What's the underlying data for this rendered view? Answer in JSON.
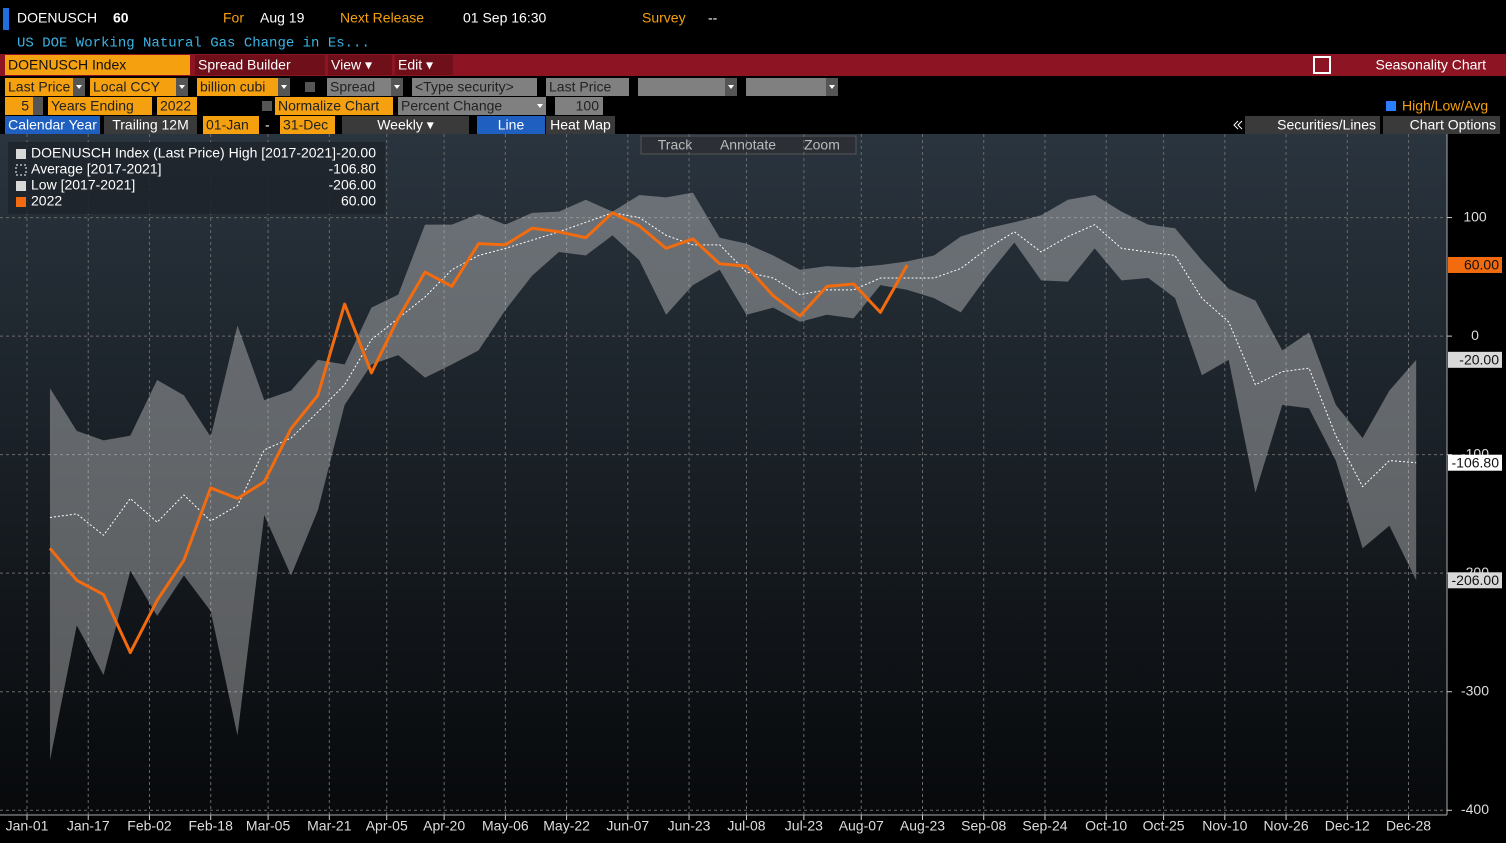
{
  "header": {
    "ticker": "DOENUSCH",
    "last": "60",
    "for_label": "For",
    "for_date": "Aug 19",
    "next_release_label": "Next Release",
    "next_release": "01 Sep 16:30",
    "survey_label": "Survey",
    "survey": "--",
    "description": "US DOE Working Natural Gas Change in Es..."
  },
  "menu": {
    "security": "DOENUSCH Index",
    "items": [
      "Spread Builder",
      "View ▾",
      "Edit ▾"
    ],
    "function": "Seasonality Chart"
  },
  "settings": {
    "fields": [
      "Last Price",
      "Local CCY",
      "billion cubi",
      "Spread",
      "<Type security>",
      "Last Price"
    ],
    "years": "5",
    "years_label": "Years Ending",
    "end_year": "2022",
    "normalize": "Normalize Chart",
    "normalize_mode": "Percent Change",
    "base": "100",
    "high_low_avg": "High/Low/Avg"
  },
  "view": {
    "period_tabs": [
      "Calendar Year",
      "Trailing 12M"
    ],
    "start": "01-Jan",
    "separator": "-",
    "end": "31-Dec",
    "frequency": "Weekly ▾",
    "styles": [
      "Line",
      "Heat Map"
    ],
    "panels": [
      "Securities/Lines",
      "Chart Options"
    ]
  },
  "tools": [
    "Track",
    "Annotate",
    "Zoom"
  ],
  "chart_data": {
    "type": "line",
    "xlim": [
      1,
      365
    ],
    "xticks": [
      {
        "value": 1,
        "label": "Jan-01"
      },
      {
        "value": 17,
        "label": "Jan-17"
      },
      {
        "value": 33,
        "label": "Feb-02"
      },
      {
        "value": 49,
        "label": "Feb-18"
      },
      {
        "value": 64,
        "label": "Mar-05"
      },
      {
        "value": 80,
        "label": "Mar-21"
      },
      {
        "value": 95,
        "label": "Apr-05"
      },
      {
        "value": 110,
        "label": "Apr-20"
      },
      {
        "value": 126,
        "label": "May-06"
      },
      {
        "value": 142,
        "label": "May-22"
      },
      {
        "value": 158,
        "label": "Jun-07"
      },
      {
        "value": 174,
        "label": "Jun-23"
      },
      {
        "value": 189,
        "label": "Jul-08"
      },
      {
        "value": 204,
        "label": "Jul-23"
      },
      {
        "value": 219,
        "label": "Aug-07"
      },
      {
        "value": 235,
        "label": "Aug-23"
      },
      {
        "value": 251,
        "label": "Sep-08"
      },
      {
        "value": 267,
        "label": "Sep-24"
      },
      {
        "value": 283,
        "label": "Oct-10"
      },
      {
        "value": 298,
        "label": "Oct-25"
      },
      {
        "value": 314,
        "label": "Nov-10"
      },
      {
        "value": 330,
        "label": "Nov-26"
      },
      {
        "value": 346,
        "label": "Dec-12"
      },
      {
        "value": 362,
        "label": "Dec-28"
      }
    ],
    "ylim": [
      -404,
      170.5
    ],
    "yticks": [
      100,
      0,
      -100,
      -200,
      -300,
      -400
    ],
    "grid": true,
    "x": [
      7,
      14,
      21,
      28,
      35,
      42,
      49,
      56,
      63,
      70,
      77,
      84,
      91,
      98,
      105,
      112,
      119,
      126,
      133,
      140,
      147,
      154,
      161,
      168,
      175,
      182,
      189,
      196,
      203,
      210,
      217,
      224,
      231,
      238,
      245,
      252,
      259,
      266,
      273,
      280,
      287,
      294,
      301,
      308,
      315,
      322,
      329,
      336,
      343,
      350,
      357,
      364
    ],
    "series": [
      {
        "name": "DOENUSCH Index (Last Price) High [2017-2021]",
        "style": "band-high",
        "color": "#d9d9d9",
        "legend_value": "-20.00",
        "values": [
          -44,
          -80,
          -88,
          -84,
          -37,
          -50,
          -85,
          9,
          -54,
          -46,
          -20,
          -24,
          24,
          35,
          94,
          94,
          103,
          94,
          104,
          105,
          115,
          105,
          119,
          117,
          121,
          83,
          78,
          68,
          56,
          59,
          58,
          60,
          63,
          68,
          84,
          91,
          96,
          102,
          115,
          119,
          105,
          94,
          91,
          64,
          40,
          30,
          -12,
          3,
          -58,
          -86,
          -46,
          -20
        ]
      },
      {
        "name": "Average  [2017-2021]",
        "style": "dotted",
        "color": "#ffffff",
        "legend_value": "-106.80",
        "values": [
          -153,
          -150,
          -168,
          -137,
          -157,
          -134,
          -156,
          -143,
          -96,
          -86,
          -64,
          -41,
          -3,
          15,
          33,
          56,
          68,
          74,
          81,
          88,
          96,
          104,
          100,
          85,
          77,
          77,
          54,
          49,
          35,
          39,
          39,
          49,
          49,
          49,
          57,
          74,
          88,
          71,
          84,
          94,
          74,
          71,
          68,
          32,
          12,
          -41,
          -30,
          -27,
          -84,
          -127,
          -105,
          -106.8
        ]
      },
      {
        "name": "Low  [2017-2021]",
        "style": "band-low",
        "color": "#d9d9d9",
        "legend_value": "-206.00",
        "values": [
          -358,
          -244,
          -286,
          -198,
          -236,
          -202,
          -232,
          -337,
          -151,
          -202,
          -147,
          -58,
          -24,
          -16,
          -35,
          -24,
          -12,
          22,
          51,
          71,
          68,
          85,
          64,
          18,
          43,
          56,
          18,
          24,
          12,
          18,
          15,
          43,
          39,
          32,
          20,
          51,
          79,
          47,
          46,
          74,
          47,
          49,
          32,
          -33,
          -20,
          -132,
          -58,
          -61,
          -105,
          -179,
          -160,
          -206
        ]
      },
      {
        "name": "2022",
        "style": "solid",
        "color": "#f26b0f",
        "legend_value": "60.00",
        "values": [
          -179,
          -206,
          -218,
          -267,
          -223,
          -189,
          -128,
          -137,
          -123,
          -78,
          -50,
          27,
          -31,
          15,
          54,
          42,
          78,
          77,
          91,
          88,
          83,
          104,
          93,
          74,
          82,
          61,
          59,
          34,
          17,
          42,
          44,
          20,
          60,
          null,
          null,
          null,
          null,
          null,
          null,
          null,
          null,
          null,
          null,
          null,
          null,
          null,
          null,
          null,
          null,
          null,
          null,
          null
        ]
      }
    ]
  }
}
